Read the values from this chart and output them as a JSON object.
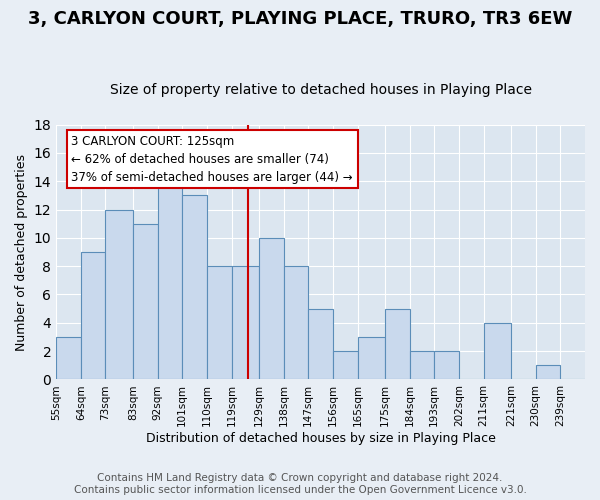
{
  "title": "3, CARLYON COURT, PLAYING PLACE, TRURO, TR3 6EW",
  "subtitle": "Size of property relative to detached houses in Playing Place",
  "xlabel": "Distribution of detached houses by size in Playing Place",
  "ylabel": "Number of detached properties",
  "bin_labels": [
    "55sqm",
    "64sqm",
    "73sqm",
    "83sqm",
    "92sqm",
    "101sqm",
    "110sqm",
    "119sqm",
    "129sqm",
    "138sqm",
    "147sqm",
    "156sqm",
    "165sqm",
    "175sqm",
    "184sqm",
    "193sqm",
    "202sqm",
    "211sqm",
    "221sqm",
    "230sqm",
    "239sqm"
  ],
  "bin_left_edges": [
    55,
    64,
    73,
    83,
    92,
    101,
    110,
    119,
    129,
    138,
    147,
    156,
    165,
    175,
    184,
    193,
    202,
    211,
    221,
    230,
    239
  ],
  "bin_widths": [
    9,
    9,
    10,
    9,
    9,
    9,
    9,
    10,
    9,
    9,
    9,
    9,
    10,
    9,
    9,
    9,
    9,
    10,
    9,
    9,
    9
  ],
  "counts": [
    3,
    9,
    12,
    11,
    14,
    13,
    8,
    8,
    10,
    8,
    5,
    2,
    3,
    5,
    2,
    2,
    0,
    4,
    0,
    1,
    0
  ],
  "bar_color": "#c9d9ed",
  "bar_edge_color": "#5b8db8",
  "ref_line_x": 125,
  "ref_line_color": "#cc0000",
  "annotation_title": "3 CARLYON COURT: 125sqm",
  "annotation_line1": "← 62% of detached houses are smaller (74)",
  "annotation_line2": "37% of semi-detached houses are larger (44) →",
  "annotation_box_facecolor": "#ffffff",
  "annotation_box_edgecolor": "#cc0000",
  "ylim": [
    0,
    18
  ],
  "yticks": [
    0,
    2,
    4,
    6,
    8,
    10,
    12,
    14,
    16,
    18
  ],
  "xlim_left": 55,
  "xlim_right": 248,
  "footer_line1": "Contains HM Land Registry data © Crown copyright and database right 2024.",
  "footer_line2": "Contains public sector information licensed under the Open Government Licence v3.0.",
  "fig_background_color": "#e8eef5",
  "plot_background_color": "#dce6f0",
  "title_fontsize": 13,
  "subtitle_fontsize": 10,
  "label_fontsize": 9,
  "tick_fontsize": 7.5,
  "footer_fontsize": 7.5,
  "annotation_fontsize": 8.5
}
